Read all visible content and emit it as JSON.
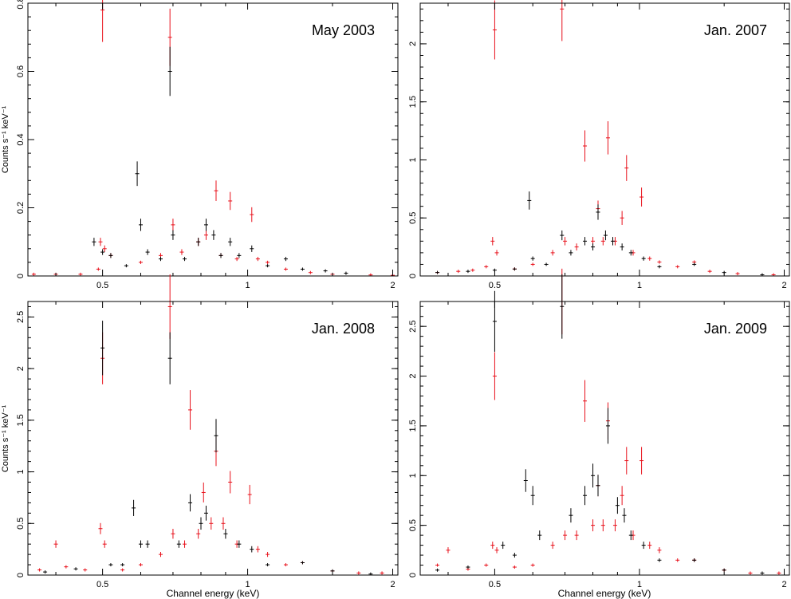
{
  "figure": {
    "xlabel": "Channel energy (keV)",
    "ylabel": "Counts s⁻¹ keV⁻¹"
  },
  "chart_data": [
    {
      "type": "scatter",
      "title": "May 2003",
      "x_scale": "log",
      "xlim": [
        0.35,
        2.05
      ],
      "ylim": [
        0,
        0.8
      ],
      "x_ticks": [
        0.5,
        1,
        2
      ],
      "x_tick_labels": [
        "0.5",
        "1",
        "2"
      ],
      "y_ticks": [
        0,
        0.2,
        0.4,
        0.6,
        0.8
      ],
      "y_tick_labels": [
        "0",
        "0.2",
        "0.4",
        "0.6",
        "0.8"
      ],
      "colors": {
        "red": "#e8101a",
        "black": "#000000"
      },
      "series": [
        {
          "color": "red",
          "points": [
            [
              0.36,
              0.005
            ],
            [
              0.4,
              0.005
            ],
            [
              0.45,
              0.005
            ],
            [
              0.49,
              0.02
            ],
            [
              0.495,
              0.1
            ],
            [
              0.5,
              0.78
            ],
            [
              0.505,
              0.08
            ],
            [
              0.52,
              0.06
            ],
            [
              0.6,
              0.04
            ],
            [
              0.66,
              0.06
            ],
            [
              0.69,
              0.7
            ],
            [
              0.7,
              0.15
            ],
            [
              0.73,
              0.07
            ],
            [
              0.79,
              0.1
            ],
            [
              0.82,
              0.12
            ],
            [
              0.86,
              0.25
            ],
            [
              0.88,
              0.06
            ],
            [
              0.92,
              0.22
            ],
            [
              0.95,
              0.05
            ],
            [
              1.02,
              0.18
            ],
            [
              1.05,
              0.05
            ],
            [
              1.1,
              0.04
            ],
            [
              1.2,
              0.02
            ],
            [
              1.35,
              0.01
            ],
            [
              1.5,
              0.005
            ],
            [
              1.8,
              0.003
            ],
            [
              2.0,
              0.002
            ]
          ]
        },
        {
          "color": "black",
          "points": [
            [
              0.48,
              0.1
            ],
            [
              0.5,
              0.07
            ],
            [
              0.52,
              0.06
            ],
            [
              0.56,
              0.03
            ],
            [
              0.59,
              0.3
            ],
            [
              0.6,
              0.15
            ],
            [
              0.62,
              0.07
            ],
            [
              0.66,
              0.05
            ],
            [
              0.69,
              0.6
            ],
            [
              0.7,
              0.12
            ],
            [
              0.74,
              0.05
            ],
            [
              0.79,
              0.1
            ],
            [
              0.82,
              0.15
            ],
            [
              0.85,
              0.12
            ],
            [
              0.88,
              0.06
            ],
            [
              0.92,
              0.1
            ],
            [
              0.96,
              0.06
            ],
            [
              1.02,
              0.08
            ],
            [
              1.1,
              0.03
            ],
            [
              1.2,
              0.05
            ],
            [
              1.3,
              0.02
            ],
            [
              1.45,
              0.015
            ],
            [
              1.6,
              0.008
            ]
          ]
        }
      ]
    },
    {
      "type": "scatter",
      "title": "Jan. 2007",
      "x_scale": "log",
      "xlim": [
        0.35,
        2.05
      ],
      "ylim": [
        0,
        2.35
      ],
      "x_ticks": [
        0.5,
        1,
        2
      ],
      "x_tick_labels": [
        "0.5",
        "1",
        "2"
      ],
      "y_ticks": [
        0,
        0.5,
        1,
        1.5,
        2
      ],
      "y_tick_labels": [
        "0",
        "0.5",
        "1",
        "1.5",
        "2"
      ],
      "colors": {
        "red": "#e8101a",
        "black": "#000000"
      },
      "series": [
        {
          "color": "red",
          "points": [
            [
              0.38,
              0.03
            ],
            [
              0.42,
              0.04
            ],
            [
              0.45,
              0.05
            ],
            [
              0.48,
              0.08
            ],
            [
              0.495,
              0.3
            ],
            [
              0.5,
              2.12
            ],
            [
              0.505,
              0.2
            ],
            [
              0.55,
              0.06
            ],
            [
              0.6,
              0.1
            ],
            [
              0.66,
              0.2
            ],
            [
              0.69,
              2.3
            ],
            [
              0.7,
              0.3
            ],
            [
              0.74,
              0.25
            ],
            [
              0.77,
              1.12
            ],
            [
              0.8,
              0.3
            ],
            [
              0.82,
              0.58
            ],
            [
              0.84,
              0.3
            ],
            [
              0.86,
              1.19
            ],
            [
              0.89,
              0.3
            ],
            [
              0.92,
              0.5
            ],
            [
              0.94,
              0.93
            ],
            [
              0.97,
              0.2
            ],
            [
              1.01,
              0.68
            ],
            [
              1.05,
              0.15
            ],
            [
              1.1,
              0.12
            ],
            [
              1.2,
              0.08
            ],
            [
              1.3,
              0.12
            ],
            [
              1.4,
              0.04
            ],
            [
              1.6,
              0.02
            ],
            [
              1.9,
              0.01
            ]
          ]
        },
        {
          "color": "black",
          "points": [
            [
              0.38,
              0.03
            ],
            [
              0.44,
              0.04
            ],
            [
              0.5,
              0.05
            ],
            [
              0.55,
              0.06
            ],
            [
              0.59,
              0.65
            ],
            [
              0.6,
              0.15
            ],
            [
              0.64,
              0.1
            ],
            [
              0.69,
              0.35
            ],
            [
              0.72,
              0.2
            ],
            [
              0.77,
              0.3
            ],
            [
              0.8,
              0.25
            ],
            [
              0.82,
              0.55
            ],
            [
              0.85,
              0.35
            ],
            [
              0.88,
              0.3
            ],
            [
              0.92,
              0.25
            ],
            [
              0.96,
              0.2
            ],
            [
              1.02,
              0.15
            ],
            [
              1.1,
              0.08
            ],
            [
              1.3,
              0.1
            ],
            [
              1.5,
              0.03
            ],
            [
              1.8,
              0.01
            ]
          ]
        }
      ]
    },
    {
      "type": "scatter",
      "title": "Jan. 2008",
      "x_scale": "log",
      "xlim": [
        0.35,
        2.05
      ],
      "ylim": [
        0,
        2.65
      ],
      "x_ticks": [
        0.5,
        1,
        2
      ],
      "x_tick_labels": [
        "0.5",
        "1",
        "2"
      ],
      "y_ticks": [
        0,
        0.5,
        1,
        1.5,
        2,
        2.5
      ],
      "y_tick_labels": [
        "0",
        "0.5",
        "1",
        "1.5",
        "2",
        "2.5"
      ],
      "colors": {
        "red": "#e8101a",
        "black": "#000000"
      },
      "series": [
        {
          "color": "red",
          "points": [
            [
              0.37,
              0.05
            ],
            [
              0.4,
              0.3
            ],
            [
              0.42,
              0.08
            ],
            [
              0.46,
              0.05
            ],
            [
              0.495,
              0.45
            ],
            [
              0.5,
              2.1
            ],
            [
              0.505,
              0.3
            ],
            [
              0.55,
              0.05
            ],
            [
              0.6,
              0.1
            ],
            [
              0.66,
              0.2
            ],
            [
              0.69,
              2.6
            ],
            [
              0.7,
              0.4
            ],
            [
              0.74,
              0.3
            ],
            [
              0.76,
              1.6
            ],
            [
              0.79,
              0.4
            ],
            [
              0.81,
              0.8
            ],
            [
              0.84,
              0.5
            ],
            [
              0.86,
              1.2
            ],
            [
              0.89,
              0.5
            ],
            [
              0.92,
              0.9
            ],
            [
              0.95,
              0.3
            ],
            [
              1.01,
              0.78
            ],
            [
              1.05,
              0.25
            ],
            [
              1.1,
              0.2
            ],
            [
              1.2,
              0.1
            ],
            [
              1.3,
              0.12
            ],
            [
              1.5,
              0.04
            ],
            [
              1.7,
              0.02
            ],
            [
              1.9,
              0.02
            ]
          ]
        },
        {
          "color": "black",
          "points": [
            [
              0.38,
              0.03
            ],
            [
              0.44,
              0.06
            ],
            [
              0.5,
              2.2
            ],
            [
              0.52,
              0.1
            ],
            [
              0.55,
              0.1
            ],
            [
              0.58,
              0.65
            ],
            [
              0.6,
              0.3
            ],
            [
              0.62,
              0.3
            ],
            [
              0.69,
              2.1
            ],
            [
              0.72,
              0.3
            ],
            [
              0.76,
              0.7
            ],
            [
              0.8,
              0.5
            ],
            [
              0.82,
              0.6
            ],
            [
              0.86,
              1.35
            ],
            [
              0.9,
              0.4
            ],
            [
              0.96,
              0.3
            ],
            [
              1.02,
              0.25
            ],
            [
              1.1,
              0.1
            ],
            [
              1.3,
              0.12
            ],
            [
              1.5,
              0.04
            ],
            [
              1.8,
              0.01
            ]
          ]
        }
      ]
    },
    {
      "type": "scatter",
      "title": "Jan. 2009",
      "x_scale": "log",
      "xlim": [
        0.35,
        2.05
      ],
      "ylim": [
        0,
        2.75
      ],
      "x_ticks": [
        0.5,
        1,
        2
      ],
      "x_tick_labels": [
        "0.5",
        "1",
        "2"
      ],
      "y_ticks": [
        0,
        0.5,
        1,
        1.5,
        2,
        2.5
      ],
      "y_tick_labels": [
        "0",
        "0.5",
        "1",
        "1.5",
        "2",
        "2.5"
      ],
      "colors": {
        "red": "#e8101a",
        "black": "#000000"
      },
      "series": [
        {
          "color": "red",
          "points": [
            [
              0.38,
              0.1
            ],
            [
              0.4,
              0.25
            ],
            [
              0.44,
              0.06
            ],
            [
              0.48,
              0.1
            ],
            [
              0.495,
              0.3
            ],
            [
              0.5,
              2.0
            ],
            [
              0.505,
              0.25
            ],
            [
              0.55,
              0.08
            ],
            [
              0.6,
              0.1
            ],
            [
              0.66,
              0.3
            ],
            [
              0.69,
              2.75
            ],
            [
              0.7,
              0.4
            ],
            [
              0.74,
              0.4
            ],
            [
              0.77,
              1.75
            ],
            [
              0.8,
              0.5
            ],
            [
              0.82,
              0.9
            ],
            [
              0.84,
              0.5
            ],
            [
              0.86,
              1.55
            ],
            [
              0.89,
              0.5
            ],
            [
              0.92,
              0.8
            ],
            [
              0.94,
              1.15
            ],
            [
              0.97,
              0.4
            ],
            [
              1.01,
              1.15
            ],
            [
              1.05,
              0.3
            ],
            [
              1.1,
              0.25
            ],
            [
              1.2,
              0.15
            ],
            [
              1.3,
              0.15
            ],
            [
              1.5,
              0.05
            ],
            [
              1.7,
              0.02
            ],
            [
              1.95,
              0.02
            ]
          ]
        },
        {
          "color": "black",
          "points": [
            [
              0.38,
              0.05
            ],
            [
              0.44,
              0.08
            ],
            [
              0.5,
              2.55
            ],
            [
              0.52,
              0.3
            ],
            [
              0.55,
              0.2
            ],
            [
              0.58,
              0.95
            ],
            [
              0.6,
              0.8
            ],
            [
              0.62,
              0.4
            ],
            [
              0.69,
              2.7
            ],
            [
              0.72,
              0.6
            ],
            [
              0.77,
              0.8
            ],
            [
              0.8,
              1.0
            ],
            [
              0.82,
              0.9
            ],
            [
              0.86,
              1.5
            ],
            [
              0.9,
              0.7
            ],
            [
              0.93,
              0.6
            ],
            [
              0.96,
              0.4
            ],
            [
              1.02,
              0.3
            ],
            [
              1.1,
              0.15
            ],
            [
              1.3,
              0.15
            ],
            [
              1.5,
              0.05
            ],
            [
              1.8,
              0.02
            ]
          ]
        }
      ]
    }
  ]
}
